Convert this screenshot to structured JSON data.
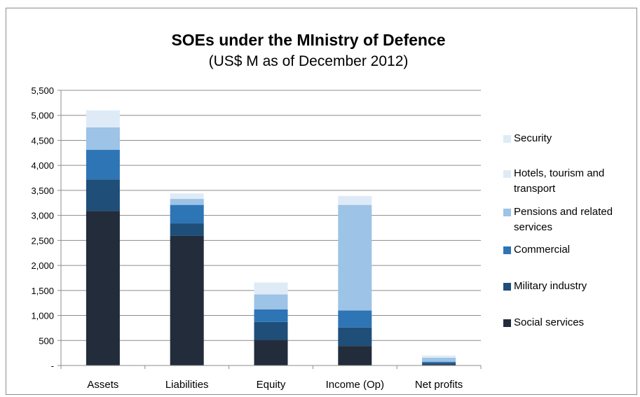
{
  "chart_data": {
    "type": "bar",
    "stacked": true,
    "title": "SOEs under the MInistry of Defence",
    "subtitle": "(US$ M as of December 2012)",
    "categories": [
      "Assets",
      "Liabilities",
      "Equity",
      "Income (Op)",
      "Net profits"
    ],
    "y_ticks": [
      "-",
      "500",
      "1,000",
      "1,500",
      "2,000",
      "2,500",
      "3,000",
      "3,500",
      "4,000",
      "4,500",
      "5,000",
      "5,500"
    ],
    "ylim": [
      0,
      5500
    ],
    "grid": true,
    "legend_position": "right",
    "series": [
      {
        "name": "Social services",
        "color": "#222c3b",
        "values": [
          3090,
          2590,
          510,
          390,
          25
        ]
      },
      {
        "name": "Military industry",
        "color": "#1f4e79",
        "values": [
          630,
          250,
          360,
          370,
          25
        ]
      },
      {
        "name": "Commercial",
        "color": "#2e75b6",
        "values": [
          590,
          370,
          250,
          340,
          25
        ]
      },
      {
        "name": "Pensions and related services",
        "color": "#9dc3e6",
        "values": [
          450,
          120,
          300,
          2110,
          80
        ]
      },
      {
        "name": "Hotels, tourism and transport",
        "color": "#deebf7",
        "values": [
          0,
          110,
          0,
          0,
          0
        ]
      },
      {
        "name": "Security",
        "color": "#deebf7",
        "values": [
          340,
          0,
          240,
          180,
          45
        ]
      }
    ]
  }
}
